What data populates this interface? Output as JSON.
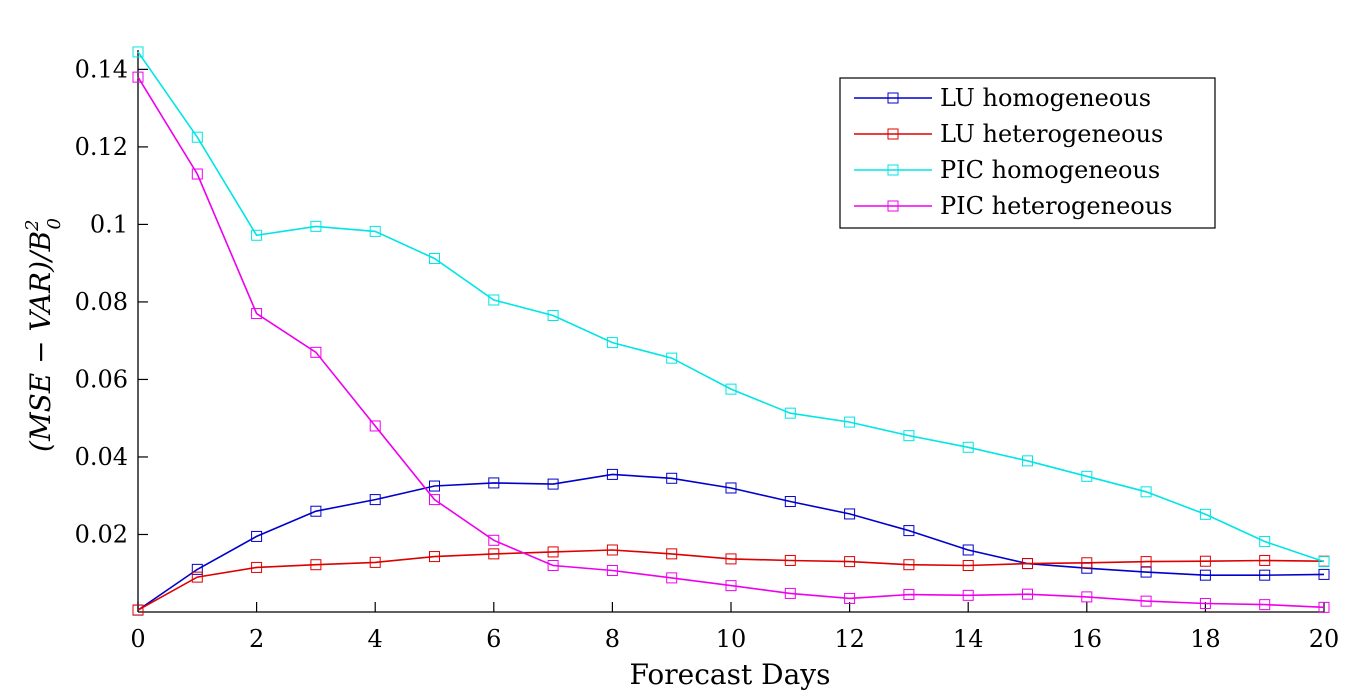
{
  "chart_data": {
    "type": "line",
    "xlabel": "Forecast Days",
    "ylabel": "(MSE − VAR)/B",
    "ylabel_sup": "2",
    "ylabel_sub": "0",
    "xlim": [
      0,
      20
    ],
    "ylim": [
      0,
      0.145
    ],
    "xticks": [
      0,
      2,
      4,
      6,
      8,
      10,
      12,
      14,
      16,
      18,
      20
    ],
    "yticks": [
      0.02,
      0.04,
      0.06,
      0.08,
      0.1,
      0.12,
      0.14
    ],
    "ytick_labels": [
      "0.02",
      "0.04",
      "0.06",
      "0.08",
      "0.1",
      "0.12",
      "0.14"
    ],
    "grid": false,
    "legend_position": "top-right",
    "x": [
      0,
      1,
      2,
      3,
      4,
      5,
      6,
      7,
      8,
      9,
      10,
      11,
      12,
      13,
      14,
      15,
      16,
      17,
      18,
      19,
      20
    ],
    "series": [
      {
        "name": "LU homogeneous",
        "color": "#0000cc",
        "values": [
          0.0005,
          0.011,
          0.0195,
          0.026,
          0.029,
          0.0325,
          0.0333,
          0.033,
          0.0355,
          0.0345,
          0.032,
          0.0285,
          0.0253,
          0.021,
          0.016,
          0.0125,
          0.0113,
          0.0103,
          0.0095,
          0.0095,
          0.0097
        ]
      },
      {
        "name": "LU heterogeneous",
        "color": "#dd0000",
        "values": [
          0.0005,
          0.009,
          0.0115,
          0.0122,
          0.0128,
          0.0143,
          0.015,
          0.0155,
          0.016,
          0.015,
          0.0137,
          0.0133,
          0.013,
          0.0122,
          0.012,
          0.0125,
          0.0127,
          0.013,
          0.0131,
          0.0133,
          0.0131
        ]
      },
      {
        "name": "PIC homogeneous",
        "color": "#00e5e5",
        "values": [
          0.1445,
          0.1225,
          0.0972,
          0.0995,
          0.0982,
          0.0912,
          0.0805,
          0.0765,
          0.0695,
          0.0655,
          0.0575,
          0.0513,
          0.049,
          0.0455,
          0.0425,
          0.039,
          0.035,
          0.031,
          0.0252,
          0.0182,
          0.013
        ]
      },
      {
        "name": "PIC heterogeneous",
        "color": "#ee00ee",
        "values": [
          0.138,
          0.113,
          0.077,
          0.067,
          0.048,
          0.029,
          0.0185,
          0.012,
          0.0107,
          0.0088,
          0.0068,
          0.0048,
          0.0035,
          0.0045,
          0.0043,
          0.0046,
          0.0039,
          0.0028,
          0.0022,
          0.0019,
          0.0012
        ]
      }
    ]
  }
}
